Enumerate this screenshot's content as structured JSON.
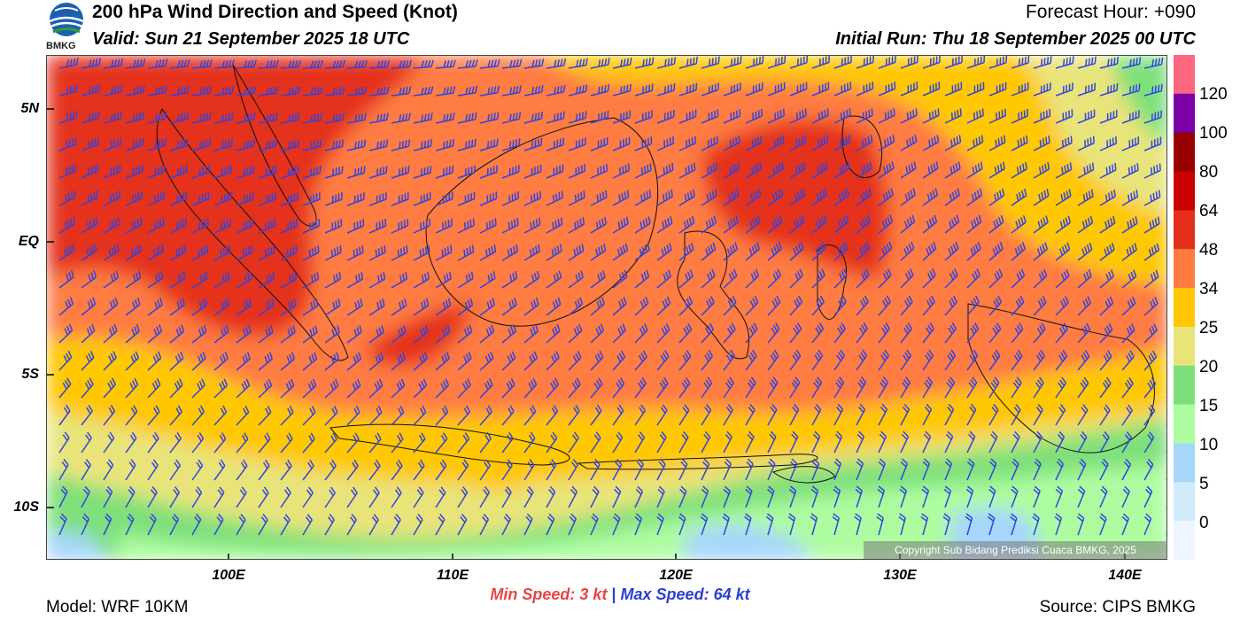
{
  "header": {
    "title": "200 hPa Wind Direction and Speed (Knot)",
    "valid": "Valid: Sun 21 September 2025 18 UTC",
    "forecast_hour": "Forecast Hour: +090",
    "initial_run": "Initial Run: Thu 18 September 2025 00 UTC",
    "logo_text": "BMKG"
  },
  "map": {
    "lat_labels": [
      "5N",
      "EQ",
      "5S",
      "10S"
    ],
    "lon_labels": [
      "100E",
      "110E",
      "120E",
      "130E",
      "140E"
    ],
    "copyright": "Copyright Sub Bidang Prediksi Cuaca BMKG, 2025",
    "colors": {
      "c0": "#eef5ff",
      "c5": "#d2ecfb",
      "c10": "#a6d6fa",
      "c15": "#adfda0",
      "c20": "#7ee07a",
      "c25": "#e8e47a",
      "c34": "#ffc800",
      "c48": "#ff7b42",
      "c64": "#e4301a",
      "c80": "#cc0000",
      "c100": "#990000",
      "c120": "#7a00a8",
      "ctop": "#ff6680",
      "barb": "#3344dd"
    }
  },
  "colorbar": {
    "labels": [
      "120",
      "100",
      "80",
      "64",
      "48",
      "34",
      "25",
      "20",
      "15",
      "10",
      "5",
      "0"
    ],
    "colors": [
      "#ff6680",
      "#7a00a8",
      "#990000",
      "#cc0000",
      "#e4301a",
      "#ff7b42",
      "#ffc800",
      "#e8e47a",
      "#7ee07a",
      "#adfda0",
      "#a6d6fa",
      "#d2ecfb",
      "#eef5ff"
    ]
  },
  "speeds": {
    "min_label": "Min Speed:",
    "min_value": "3 kt",
    "separator": "|",
    "max_label": "Max Speed:",
    "max_value": "64 kt"
  },
  "footer": {
    "model": "Model: WRF 10KM",
    "source": "Source: CIPS BMKG"
  }
}
